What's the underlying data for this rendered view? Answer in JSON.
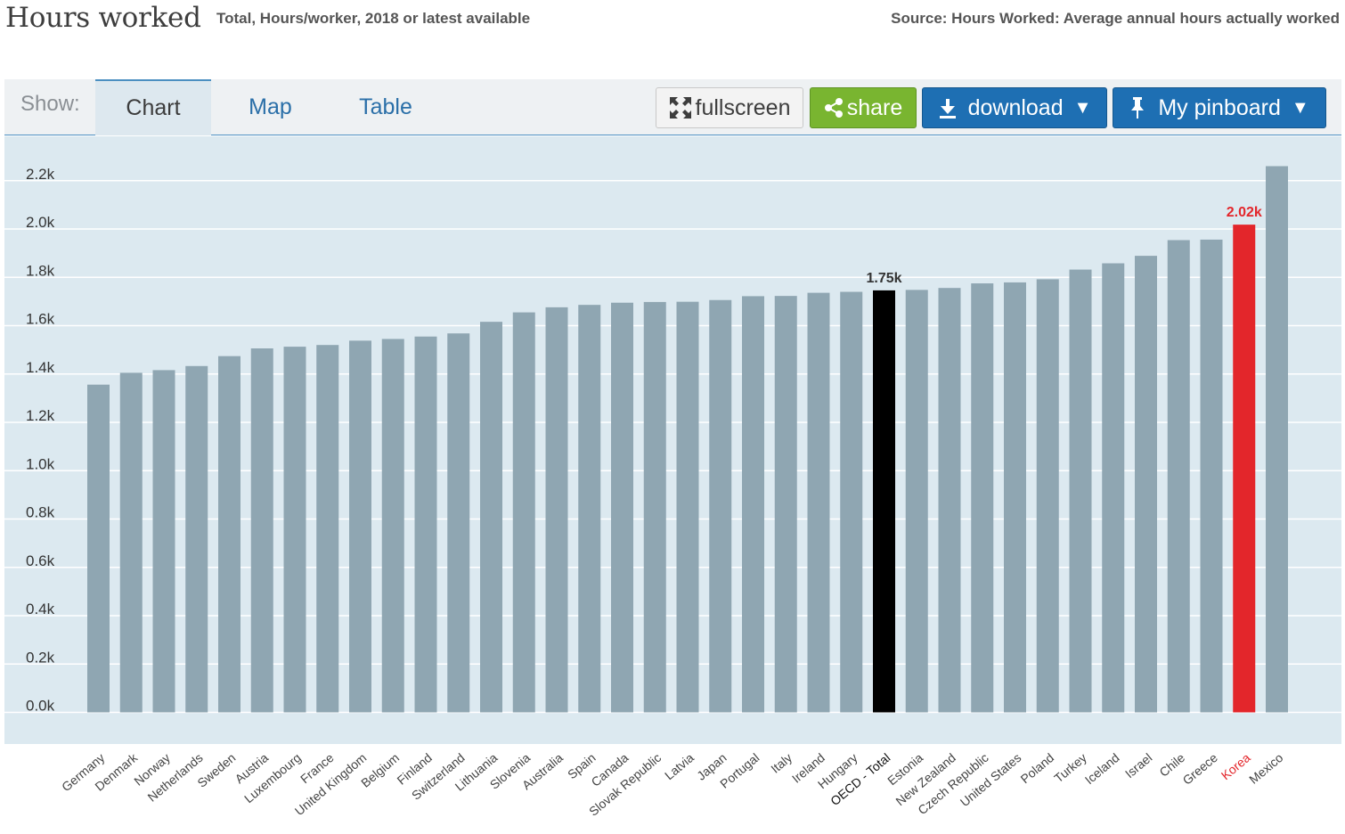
{
  "header": {
    "title": "Hours worked",
    "subtitle": "Total, Hours/worker, 2018 or latest available",
    "source": "Source: Hours Worked: Average annual hours actually worked"
  },
  "toolbar": {
    "show_label": "Show:",
    "tabs": [
      {
        "label": "Chart",
        "active": true
      },
      {
        "label": "Map",
        "active": false
      },
      {
        "label": "Table",
        "active": false
      }
    ],
    "fullscreen_label": "fullscreen",
    "share_label": "share",
    "download_label": "download",
    "pinboard_label": "My pinboard",
    "caret": "▼"
  },
  "colors": {
    "bar": "#8fa6b2",
    "oecd": "#000000",
    "highlight": "#e3262b",
    "grid": "#ffffff",
    "tick": "#333333"
  },
  "chart_data": {
    "type": "bar",
    "title": "Hours worked",
    "xlabel": "",
    "ylabel": "",
    "ylim": [
      0,
      2250
    ],
    "yticks": [
      0,
      200,
      400,
      600,
      800,
      1000,
      1200,
      1400,
      1600,
      1800,
      2000,
      2200
    ],
    "ytick_labels": [
      "0.0k",
      "0.2k",
      "0.4k",
      "0.6k",
      "0.8k",
      "1.0k",
      "1.2k",
      "1.4k",
      "1.6k",
      "1.8k",
      "2.0k",
      "2.2k"
    ],
    "grid": true,
    "categories": [
      "Germany",
      "Denmark",
      "Norway",
      "Netherlands",
      "Sweden",
      "Austria",
      "Luxembourg",
      "France",
      "United Kingdom",
      "Belgium",
      "Finland",
      "Switzerland",
      "Lithuania",
      "Slovenia",
      "Australia",
      "Spain",
      "Canada",
      "Slovak Republic",
      "Latvia",
      "Japan",
      "Portugal",
      "Italy",
      "Ireland",
      "Hungary",
      "OECD - Total",
      "Estonia",
      "New Zealand",
      "Czech Republic",
      "United States",
      "Poland",
      "Turkey",
      "Iceland",
      "Israel",
      "Chile",
      "Greece",
      "Korea",
      "Mexico"
    ],
    "values": [
      1356,
      1405,
      1416,
      1433,
      1474,
      1506,
      1513,
      1520,
      1538,
      1545,
      1555,
      1568,
      1616,
      1655,
      1676,
      1686,
      1695,
      1698,
      1699,
      1706,
      1722,
      1723,
      1736,
      1740,
      1746,
      1748,
      1756,
      1775,
      1779,
      1792,
      1832,
      1858,
      1889,
      1954,
      1956,
      2018,
      2260
    ],
    "highlight": {
      "OECD - Total": "oecd",
      "Korea": "highlight"
    },
    "data_labels": {
      "OECD - Total": "1.75k",
      "Korea": "2.02k"
    }
  }
}
